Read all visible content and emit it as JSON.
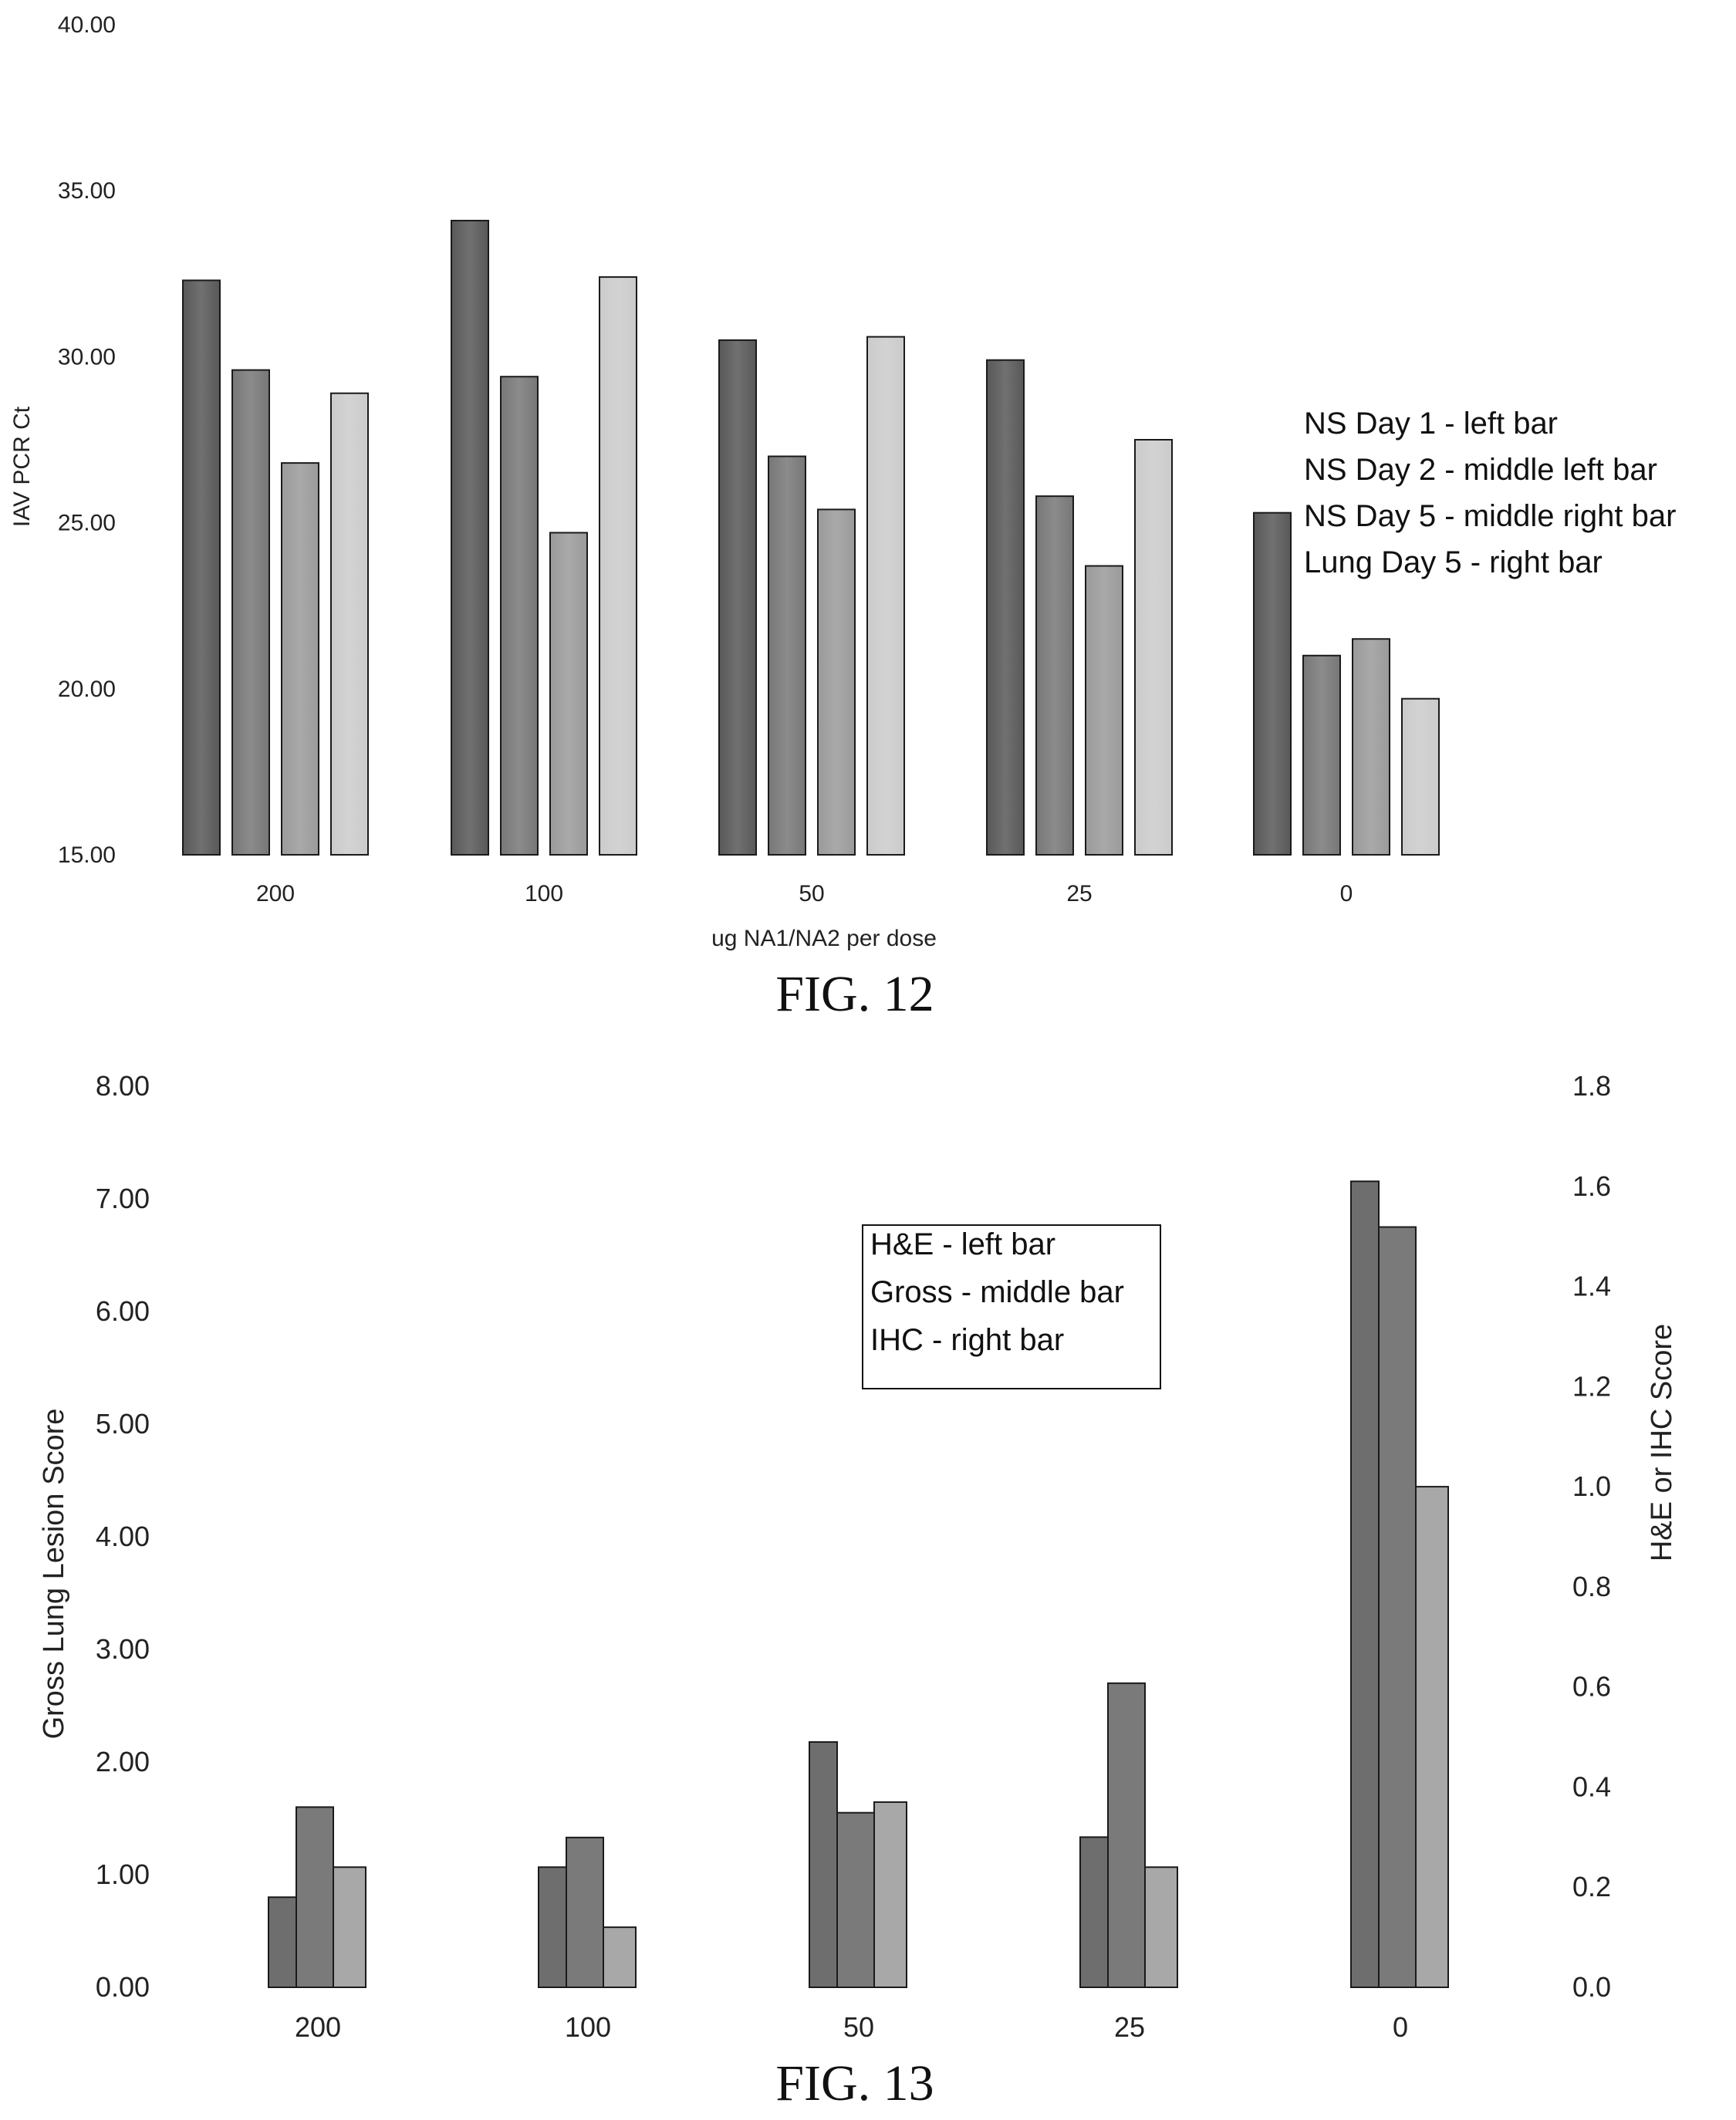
{
  "chart_data": [
    {
      "type": "bar",
      "caption": "FIG. 12",
      "xlabel": "ug NA1/NA2 per dose",
      "ylabel": "IAV PCR Ct",
      "ylim": [
        15,
        40
      ],
      "yticks": [
        "15.00",
        "20.00",
        "25.00",
        "30.00",
        "35.00",
        "40.00"
      ],
      "categories": [
        "200",
        "100",
        "50",
        "25",
        "0"
      ],
      "legend_lines": [
        "NS Day 1 - left  bar",
        "NS Day 2 -  middle left bar",
        "NS Day 5 - middle right bar",
        "Lung Day 5 - right bar"
      ],
      "colors": [
        "#585858",
        "#777777",
        "#9a9a9a",
        "#cbcbcb"
      ],
      "series": [
        {
          "name": "NS Day 1",
          "values": [
            32.3,
            34.1,
            30.5,
            29.9,
            25.3
          ]
        },
        {
          "name": "NS Day 2",
          "values": [
            29.6,
            29.4,
            27.0,
            25.8,
            21.0
          ]
        },
        {
          "name": "NS Day 5",
          "values": [
            26.8,
            24.7,
            25.4,
            23.7,
            21.5
          ]
        },
        {
          "name": "Lung Day 5",
          "values": [
            28.9,
            32.4,
            30.6,
            27.5,
            19.7
          ]
        }
      ]
    },
    {
      "type": "bar",
      "caption": "FIG. 13",
      "xlabel": "",
      "ylabel": "Gross Lung Lesion Score",
      "y2label": "H&E or IHC Score",
      "ylim": [
        0,
        8
      ],
      "y2lim": [
        0,
        1.8
      ],
      "yticks": [
        "0.00",
        "1.00",
        "2.00",
        "3.00",
        "4.00",
        "5.00",
        "6.00",
        "7.00",
        "8.00"
      ],
      "y2ticks": [
        "0.0",
        "0.2",
        "0.4",
        "0.6",
        "0.8",
        "1.0",
        "1.2",
        "1.4",
        "1.6",
        "1.8"
      ],
      "categories": [
        "200",
        "100",
        "50",
        "25",
        "0"
      ],
      "legend_lines": [
        "H&E - left bar",
        "Gross - middle bar",
        "IHC - right bar"
      ],
      "colors": [
        "#6e6e6e",
        "#7a7a7a",
        "#a8a8a8"
      ],
      "series": [
        {
          "name": "H&E",
          "axis": "right",
          "values": [
            0.18,
            0.24,
            0.49,
            0.3,
            1.61
          ]
        },
        {
          "name": "Gross",
          "axis": "left",
          "values": [
            1.6,
            1.33,
            1.55,
            2.7,
            6.75
          ]
        },
        {
          "name": "IHC",
          "axis": "right",
          "values": [
            0.24,
            0.12,
            0.37,
            0.24,
            1.0
          ]
        }
      ]
    }
  ]
}
